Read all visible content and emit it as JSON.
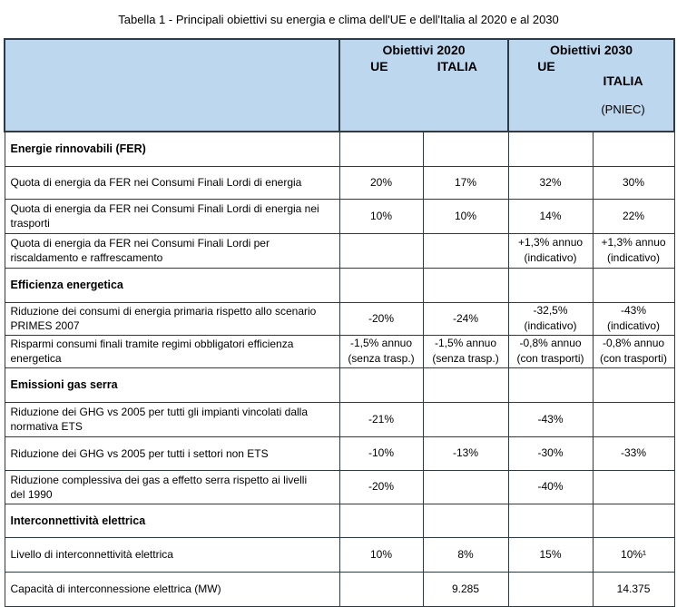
{
  "caption": "Tabella 1 - Principali obiettivi su energia e clima dell'UE e dell'Italia al 2020 e al 2030",
  "header": {
    "group_2020": "Obiettivi 2020",
    "group_2030": "Obiettivi 2030",
    "ue_2020": "UE",
    "italia_2020": "ITALIA",
    "ue_2030": "UE",
    "italia_2030": "ITALIA",
    "italia_2030_note": "(PNIEC)"
  },
  "rows": [
    {
      "type": "section",
      "label": "Energie rinnovabili (FER)",
      "cells": [
        "",
        "",
        "",
        ""
      ]
    },
    {
      "type": "data",
      "label": "Quota di energia da FER nei Consumi Finali Lordi di energia",
      "cells": [
        "20%",
        "17%",
        "32%",
        "30%"
      ]
    },
    {
      "type": "data",
      "label": "Quota di energia da FER nei Consumi Finali Lordi di energia nei\ntrasporti",
      "cells": [
        "10%",
        "10%",
        "14%",
        "22%"
      ]
    },
    {
      "type": "data",
      "label": "Quota di energia da FER nei Consumi Finali Lordi per\nriscaldamento e raffrescamento",
      "cells": [
        "",
        "",
        "+1,3% annuo\n(indicativo)",
        "+1,3% annuo\n(indicativo)"
      ]
    },
    {
      "type": "section",
      "label": "Efficienza energetica",
      "cells": [
        "",
        "",
        "",
        ""
      ]
    },
    {
      "type": "data",
      "label": "Riduzione dei consumi di energia primaria rispetto allo scenario\nPRIMES 2007",
      "cells": [
        "-20%",
        "-24%",
        "-32,5%\n(indicativo)",
        "-43%\n(indicativo)"
      ]
    },
    {
      "type": "data",
      "label": "Risparmi consumi finali tramite regimi obbligatori efficienza\nenergetica",
      "cells": [
        "-1,5% annuo\n(senza trasp.)",
        "-1,5% annuo\n(senza trasp.)",
        "-0,8% annuo\n(con trasporti)",
        "-0,8% annuo\n(con trasporti)"
      ]
    },
    {
      "type": "section",
      "label": "Emissioni gas serra",
      "cells": [
        "",
        "",
        "",
        ""
      ]
    },
    {
      "type": "data",
      "label": "Riduzione dei GHG vs 2005 per tutti gli impianti vincolati dalla\nnormativa ETS",
      "cells": [
        "-21%",
        "",
        "-43%",
        ""
      ]
    },
    {
      "type": "data",
      "label": "Riduzione dei GHG vs 2005 per tutti i settori non ETS",
      "cells": [
        "-10%",
        "-13%",
        "-30%",
        "-33%"
      ]
    },
    {
      "type": "data",
      "label": "Riduzione complessiva dei gas a effetto serra rispetto ai livelli\ndel 1990",
      "cells": [
        "-20%",
        "",
        "-40%",
        ""
      ]
    },
    {
      "type": "section",
      "label": "Interconnettività elettrica",
      "cells": [
        "",
        "",
        "",
        ""
      ]
    },
    {
      "type": "data",
      "label": "Livello di interconnettività elettrica",
      "cells": [
        "10%",
        "8%",
        "15%",
        "10%¹"
      ]
    },
    {
      "type": "data",
      "label": "Capacità di interconnessione elettrica (MW)",
      "cells": [
        "",
        "9.285",
        "",
        "14.375"
      ]
    }
  ]
}
